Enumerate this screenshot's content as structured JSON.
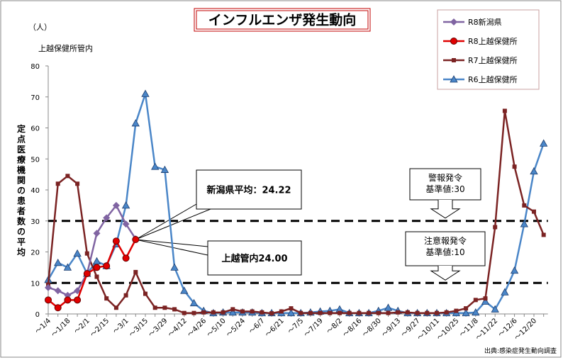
{
  "chart_data": {
    "type": "line",
    "title": "インフルエンザ発生動向",
    "unit_label": "（人）",
    "region_label": "上越保健所管内",
    "y_label": "定点医療機関の患者数の平均",
    "source": "出典:感染症発生動向調査",
    "categories": [
      "～1/4",
      null,
      "～1/18",
      null,
      "～2/1",
      null,
      "～2/15",
      null,
      "～3/1",
      null,
      "～3/15",
      null,
      "～3/29",
      null,
      "～4/12",
      null,
      "～4/26",
      null,
      "～5/10",
      null,
      "～5/24",
      null,
      "～6/7",
      null,
      "～6/21",
      null,
      "～7/5",
      null,
      "～7/19",
      null,
      "～8/2",
      null,
      "～8/16",
      null,
      "～8/30",
      null,
      "～9/13",
      null,
      "～9/27",
      null,
      "～10/11",
      null,
      "～10/25",
      null,
      "～11/8",
      null,
      "～11/22",
      null,
      "～12/6",
      null,
      "～12/20",
      null
    ],
    "ylim": [
      0,
      80
    ],
    "yticks": [
      0,
      10,
      20,
      30,
      40,
      50,
      60,
      70,
      80
    ],
    "grid": false,
    "legend": "top-right",
    "series": [
      {
        "name": "R8新潟県",
        "color": "#8064a2",
        "marker": "diamond",
        "values": [
          8.5,
          7.5,
          6,
          7.5,
          13,
          26,
          31,
          35,
          29,
          24.22,
          null,
          null,
          null,
          null,
          null,
          null,
          null,
          null,
          null,
          null,
          null,
          null,
          null,
          null,
          null,
          null,
          null,
          null,
          null,
          null,
          null,
          null,
          null,
          null,
          null,
          null,
          null,
          null,
          null,
          null,
          null,
          null,
          null,
          null,
          null,
          null,
          null,
          null,
          null,
          null,
          null,
          null
        ]
      },
      {
        "name": "R8上越保健所",
        "color": "#e00000",
        "marker": "circle",
        "values": [
          4.5,
          2,
          4.5,
          4.5,
          13,
          15,
          15.5,
          23.5,
          18,
          24,
          null,
          null,
          null,
          null,
          null,
          null,
          null,
          null,
          null,
          null,
          null,
          null,
          null,
          null,
          null,
          null,
          null,
          null,
          null,
          null,
          null,
          null,
          null,
          null,
          null,
          null,
          null,
          null,
          null,
          null,
          null,
          null,
          null,
          null,
          null,
          null,
          null,
          null,
          null,
          null,
          null,
          null
        ]
      },
      {
        "name": "R7上越保健所",
        "color": "#7b2323",
        "marker": "square",
        "values": [
          9.5,
          42,
          44.5,
          42,
          19.5,
          12,
          5,
          2,
          6,
          13.5,
          6.5,
          2,
          2,
          1.5,
          0.3,
          0.3,
          0.5,
          0.5,
          0.5,
          1.5,
          0.8,
          0.8,
          0.5,
          0.2,
          0.8,
          1.8,
          0.3,
          0.3,
          0.3,
          0.3,
          0.3,
          0.3,
          0.3,
          0.3,
          0.3,
          0.3,
          0.5,
          0.5,
          0.3,
          0.3,
          0.3,
          0.5,
          1,
          1.8,
          4.5,
          5,
          28,
          65.5,
          47.5,
          35,
          33,
          25.5
        ]
      },
      {
        "name": "R6上越保健所",
        "color": "#4a86c8",
        "marker": "triangle",
        "values": [
          11,
          16.5,
          15,
          19.5,
          13,
          17,
          15.5,
          22.5,
          35,
          61.5,
          71,
          47.5,
          46.5,
          15,
          7.5,
          3.5,
          1,
          0.3,
          0.5,
          0.5,
          0.5,
          0.5,
          0.3,
          0.3,
          0.3,
          0.3,
          0.3,
          0.5,
          0.8,
          1,
          1.5,
          0.3,
          0.3,
          0.3,
          1,
          2,
          1,
          0.3,
          0.3,
          0.3,
          0.3,
          0.3,
          0.3,
          0.3,
          0.5,
          4,
          1.5,
          7,
          14,
          29,
          46,
          55
        ]
      }
    ],
    "reference_lines": [
      {
        "value": 30,
        "lines": [
          "警報発令",
          "基準値:30"
        ]
      },
      {
        "value": 10,
        "lines": [
          "注意報発令",
          "基準値:10"
        ]
      }
    ],
    "callouts": [
      "新潟県平均：24.22",
      "上越管内24.00"
    ]
  }
}
